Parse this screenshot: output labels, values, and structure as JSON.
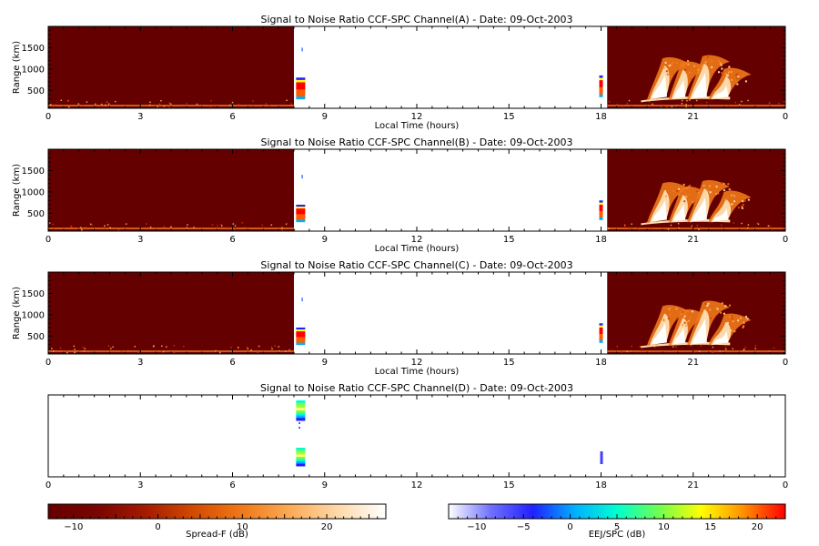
{
  "chart_data": [
    {
      "type": "heatmap",
      "title": "Signal to Noise Ratio CCF-SPC Channel(A) - Date: 09-Oct-2003",
      "xlabel": "Local Time (hours)",
      "ylabel": "Range (km)",
      "xlim": [
        0,
        24
      ],
      "ylim": [
        80,
        2000
      ],
      "x_ticks": [
        "0",
        "3",
        "6",
        "9",
        "12",
        "15",
        "18",
        "21",
        "0"
      ],
      "y_ticks": [
        500,
        1000,
        1500
      ],
      "colorscale": "spread-f",
      "background_intervals_hours": [
        [
          0,
          8.0
        ],
        [
          18.2,
          24
        ]
      ],
      "bursts": [
        {
          "time": 8.1,
          "range_min": 300,
          "range_max": 800,
          "peak_db": 22
        },
        {
          "time": 18.0,
          "range_min": 350,
          "range_max": 850,
          "peak_db": 20
        }
      ],
      "plumes": [
        {
          "start_time": 19.5,
          "peak_time": 20.0,
          "top_range": 1250
        },
        {
          "start_time": 20.2,
          "peak_time": 20.6,
          "top_range": 1150
        },
        {
          "start_time": 20.8,
          "peak_time": 21.3,
          "top_range": 1300
        },
        {
          "start_time": 21.5,
          "peak_time": 22.0,
          "top_range": 1000
        }
      ]
    },
    {
      "type": "heatmap",
      "title": "Signal to Noise Ratio CCF-SPC Channel(B) - Date: 09-Oct-2003",
      "xlabel": "Local Time (hours)",
      "ylabel": "Range (km)",
      "xlim": [
        0,
        24
      ],
      "ylim": [
        80,
        2000
      ],
      "x_ticks": [
        "0",
        "3",
        "6",
        "9",
        "12",
        "15",
        "18",
        "21",
        "0"
      ],
      "y_ticks": [
        500,
        1000,
        1500
      ],
      "colorscale": "spread-f",
      "background_intervals_hours": [
        [
          0,
          8.0
        ],
        [
          18.2,
          24
        ]
      ],
      "bursts": [
        {
          "time": 8.1,
          "range_min": 300,
          "range_max": 700,
          "peak_db": 22
        },
        {
          "time": 18.0,
          "range_min": 350,
          "range_max": 800,
          "peak_db": 20
        }
      ],
      "plumes": [
        {
          "start_time": 19.5,
          "peak_time": 20.0,
          "top_range": 1200
        },
        {
          "start_time": 20.2,
          "peak_time": 20.6,
          "top_range": 1100
        },
        {
          "start_time": 20.8,
          "peak_time": 21.3,
          "top_range": 1250
        },
        {
          "start_time": 21.5,
          "peak_time": 22.0,
          "top_range": 1000
        }
      ]
    },
    {
      "type": "heatmap",
      "title": "Signal to Noise Ratio CCF-SPC Channel(C) - Date: 09-Oct-2003",
      "xlabel": "Local Time (hours)",
      "ylabel": "Range (km)",
      "xlim": [
        0,
        24
      ],
      "ylim": [
        80,
        2000
      ],
      "x_ticks": [
        "0",
        "3",
        "6",
        "9",
        "12",
        "15",
        "18",
        "21",
        "0"
      ],
      "y_ticks": [
        500,
        1000,
        1500
      ],
      "colorscale": "spread-f",
      "background_intervals_hours": [
        [
          0,
          8.0
        ],
        [
          18.2,
          24
        ]
      ],
      "bursts": [
        {
          "time": 8.1,
          "range_min": 300,
          "range_max": 700,
          "peak_db": 22
        },
        {
          "time": 18.0,
          "range_min": 350,
          "range_max": 800,
          "peak_db": 20
        }
      ],
      "plumes": [
        {
          "start_time": 19.5,
          "peak_time": 20.0,
          "top_range": 1200
        },
        {
          "start_time": 20.2,
          "peak_time": 20.6,
          "top_range": 1100
        },
        {
          "start_time": 20.8,
          "peak_time": 21.3,
          "top_range": 1300
        },
        {
          "start_time": 21.5,
          "peak_time": 22.0,
          "top_range": 1000
        }
      ]
    },
    {
      "type": "heatmap",
      "title": "Signal to Noise Ratio CCF-SPC Channel(D) - Date: 09-Oct-2003",
      "xlim": [
        0,
        24
      ],
      "x_ticks": [
        "0",
        "3",
        "6",
        "9",
        "12",
        "15",
        "18",
        "21",
        "0"
      ],
      "colorscale": "eej-spc",
      "blocks": [
        {
          "time": 8.1,
          "span": "upper",
          "peak_db": 8
        },
        {
          "time": 8.1,
          "span": "lower",
          "peak_db": 8
        },
        {
          "time": 18.0,
          "span": "lower",
          "peak_db": -8
        }
      ]
    }
  ],
  "colorbars": [
    {
      "name": "spread-f",
      "label": "Spread-F (dB)",
      "range": [
        -13,
        27
      ],
      "tick_values": [
        -10,
        0,
        10,
        20
      ],
      "tick_labels": [
        "−10",
        "0",
        "10",
        "20"
      ],
      "colors": [
        "#650000",
        "#7a0400",
        "#a31a00",
        "#d24a00",
        "#f07818",
        "#fbaa55",
        "#fdd8a8",
        "#ffffff"
      ]
    },
    {
      "name": "eej-spc",
      "label": "EEJ/SPC (dB)",
      "range": [
        -13,
        23
      ],
      "tick_values": [
        -10,
        -5,
        0,
        5,
        10,
        15,
        20
      ],
      "tick_labels": [
        "−10",
        "−5",
        "0",
        "5",
        "10",
        "15",
        "20"
      ],
      "colors": [
        "#ffffff",
        "#7070ff",
        "#2020ff",
        "#00b0ff",
        "#00ffd0",
        "#70ff50",
        "#ffff00",
        "#ff9000",
        "#ff0000"
      ]
    }
  ]
}
